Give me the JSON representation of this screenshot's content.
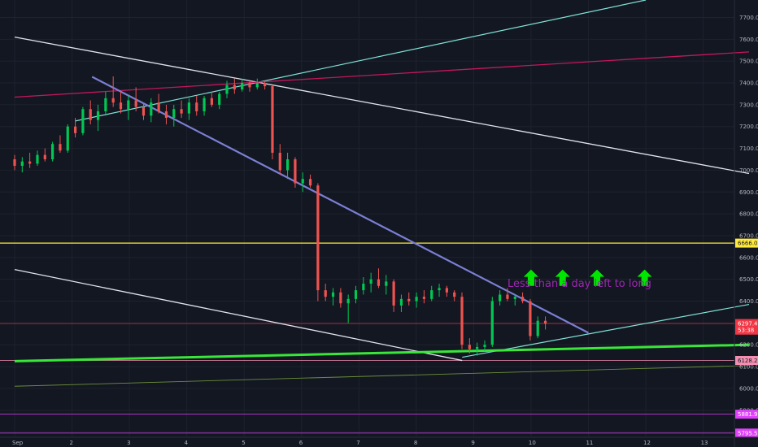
{
  "chart_data": {
    "type": "candlestick",
    "title": "",
    "annotation": "Less than a day left to long",
    "x_axis": {
      "labels": [
        "Sep",
        "2",
        "3",
        "4",
        "5",
        "6",
        "7",
        "8",
        "9",
        "10",
        "11",
        "12",
        "13"
      ],
      "range_days": [
        1,
        13.8
      ]
    },
    "y_axis": {
      "ticks": [
        "7700.0",
        "7600.0",
        "7500.0",
        "7400.0",
        "7300.0",
        "7200.0",
        "7100.0",
        "7000.0",
        "6900.0",
        "6800.0",
        "6700.0",
        "6600.0",
        "6500.0",
        "6400.0",
        "6300.0",
        "6200.0",
        "6100.0",
        "6000.0",
        "5900.0",
        "5800.0"
      ],
      "range": [
        5780,
        7780
      ]
    },
    "price_labels": [
      {
        "text": "6666.0",
        "value": 6666,
        "color": "#ffeb3b"
      },
      {
        "text": "6297.4",
        "value": 6297.4,
        "color": "#f23645"
      },
      {
        "text": "53:38",
        "value": 6267,
        "color": "#f23645"
      },
      {
        "text": "6128.2",
        "value": 6128.2,
        "color": "#f48fb1"
      },
      {
        "text": "5881.9",
        "value": 5881.9,
        "color": "#e040fb"
      },
      {
        "text": "5795.5",
        "value": 5795.5,
        "color": "#e040fb"
      }
    ],
    "horizontal_lines": [
      {
        "value": 6666,
        "color": "#ffeb3b",
        "width": 1.2
      },
      {
        "value": 6297.4,
        "color": "#f23645",
        "width": 0.6
      },
      {
        "value": 6128.2,
        "color": "#f48fb1",
        "width": 0.8
      },
      {
        "value": 5881.9,
        "color": "#e040fb",
        "width": 0.8
      },
      {
        "value": 5795.5,
        "color": "#e040fb",
        "width": 0.8
      }
    ],
    "trend_lines": [
      {
        "name": "descending-resistance-white",
        "color": "#e0e3eb",
        "width": 1.3,
        "points": [
          [
            1.0,
            7610
          ],
          [
            13.8,
            6985
          ]
        ]
      },
      {
        "name": "descending-support-white",
        "color": "#e0e3eb",
        "width": 1.3,
        "points": [
          [
            1.0,
            6545
          ],
          [
            8.8,
            6128
          ]
        ]
      },
      {
        "name": "rising-channel-cyan",
        "color": "#7fe3d8",
        "width": 1.2,
        "points": [
          [
            2.05,
            7225
          ],
          [
            12.0,
            7780
          ]
        ]
      },
      {
        "name": "rising-support-cyan",
        "color": "#7fe3d8",
        "width": 1.2,
        "points": [
          [
            8.8,
            6143
          ],
          [
            13.8,
            6385
          ]
        ]
      },
      {
        "name": "resistance-red",
        "color": "#c2185b",
        "width": 1.3,
        "points": [
          [
            1.0,
            7335
          ],
          [
            13.8,
            7542
          ]
        ]
      },
      {
        "name": "falling-wedge-purple",
        "color": "#7b7fd4",
        "width": 2.2,
        "points": [
          [
            2.35,
            7428
          ],
          [
            11.0,
            6255
          ]
        ]
      },
      {
        "name": "long-support-green",
        "color": "#39e639",
        "width": 3,
        "points": [
          [
            1.0,
            6125
          ],
          [
            13.8,
            6200
          ]
        ]
      },
      {
        "name": "lower-support-olive",
        "color": "#6b8f3a",
        "width": 0.9,
        "points": [
          [
            1.0,
            6010
          ],
          [
            13.8,
            6105
          ]
        ]
      }
    ],
    "candles_ohlc": [
      [
        7050,
        7070,
        7000,
        7020
      ],
      [
        7020,
        7060,
        6990,
        7040
      ],
      [
        7040,
        7080,
        7010,
        7030
      ],
      [
        7030,
        7090,
        7020,
        7070
      ],
      [
        7070,
        7100,
        7040,
        7050
      ],
      [
        7050,
        7130,
        7040,
        7120
      ],
      [
        7120,
        7160,
        7080,
        7090
      ],
      [
        7090,
        7210,
        7080,
        7200
      ],
      [
        7200,
        7240,
        7150,
        7170
      ],
      [
        7170,
        7290,
        7160,
        7280
      ],
      [
        7280,
        7320,
        7210,
        7230
      ],
      [
        7230,
        7300,
        7180,
        7270
      ],
      [
        7270,
        7360,
        7250,
        7330
      ],
      [
        7330,
        7430,
        7290,
        7310
      ],
      [
        7310,
        7360,
        7260,
        7280
      ],
      [
        7280,
        7340,
        7230,
        7320
      ],
      [
        7320,
        7380,
        7270,
        7290
      ],
      [
        7290,
        7310,
        7230,
        7250
      ],
      [
        7250,
        7330,
        7220,
        7310
      ],
      [
        7310,
        7350,
        7260,
        7270
      ],
      [
        7270,
        7300,
        7210,
        7240
      ],
      [
        7240,
        7300,
        7200,
        7280
      ],
      [
        7280,
        7320,
        7240,
        7260
      ],
      [
        7260,
        7330,
        7230,
        7310
      ],
      [
        7310,
        7340,
        7250,
        7270
      ],
      [
        7270,
        7340,
        7250,
        7330
      ],
      [
        7330,
        7360,
        7290,
        7300
      ],
      [
        7300,
        7360,
        7280,
        7350
      ],
      [
        7350,
        7410,
        7330,
        7390
      ],
      [
        7390,
        7420,
        7350,
        7370
      ],
      [
        7370,
        7420,
        7360,
        7400
      ],
      [
        7400,
        7410,
        7360,
        7380
      ],
      [
        7380,
        7420,
        7370,
        7400
      ],
      [
        7400,
        7410,
        7370,
        7385
      ],
      [
        7385,
        7390,
        7050,
        7080
      ],
      [
        7080,
        7120,
        6980,
        7000
      ],
      [
        7000,
        7080,
        6960,
        7050
      ],
      [
        7050,
        7060,
        6920,
        6940
      ],
      [
        6940,
        6990,
        6900,
        6960
      ],
      [
        6960,
        6980,
        6920,
        6930
      ],
      [
        6930,
        6940,
        6400,
        6450
      ],
      [
        6450,
        6480,
        6400,
        6420
      ],
      [
        6420,
        6460,
        6380,
        6440
      ],
      [
        6440,
        6460,
        6370,
        6390
      ],
      [
        6390,
        6430,
        6300,
        6410
      ],
      [
        6410,
        6470,
        6390,
        6450
      ],
      [
        6450,
        6510,
        6430,
        6480
      ],
      [
        6480,
        6530,
        6440,
        6500
      ],
      [
        6500,
        6550,
        6460,
        6470
      ],
      [
        6470,
        6520,
        6430,
        6490
      ],
      [
        6490,
        6500,
        6350,
        6380
      ],
      [
        6380,
        6430,
        6350,
        6410
      ],
      [
        6410,
        6440,
        6380,
        6400
      ],
      [
        6400,
        6440,
        6370,
        6420
      ],
      [
        6420,
        6450,
        6390,
        6410
      ],
      [
        6410,
        6470,
        6400,
        6450
      ],
      [
        6450,
        6480,
        6420,
        6460
      ],
      [
        6460,
        6470,
        6420,
        6440
      ],
      [
        6440,
        6450,
        6400,
        6420
      ],
      [
        6420,
        6440,
        6180,
        6200
      ],
      [
        6200,
        6230,
        6160,
        6180
      ],
      [
        6180,
        6210,
        6150,
        6190
      ],
      [
        6190,
        6220,
        6170,
        6200
      ],
      [
        6200,
        6420,
        6190,
        6400
      ],
      [
        6400,
        6450,
        6380,
        6430
      ],
      [
        6430,
        6460,
        6400,
        6410
      ],
      [
        6410,
        6430,
        6380,
        6420
      ],
      [
        6420,
        6440,
        6390,
        6400
      ],
      [
        6400,
        6410,
        6220,
        6240
      ],
      [
        6240,
        6330,
        6230,
        6310
      ],
      [
        6310,
        6330,
        6270,
        6297
      ]
    ]
  },
  "arrows": [
    {
      "color": "#00e600"
    },
    {
      "color": "#00e600"
    },
    {
      "color": "#00e600"
    },
    {
      "color": "#00e600"
    }
  ],
  "colors": {
    "background": "#131722",
    "grid": "#1e222d",
    "up": "#26a69a",
    "down": "#ef5350",
    "up_bright": "#00c853",
    "annotation": "#9c27b0"
  }
}
